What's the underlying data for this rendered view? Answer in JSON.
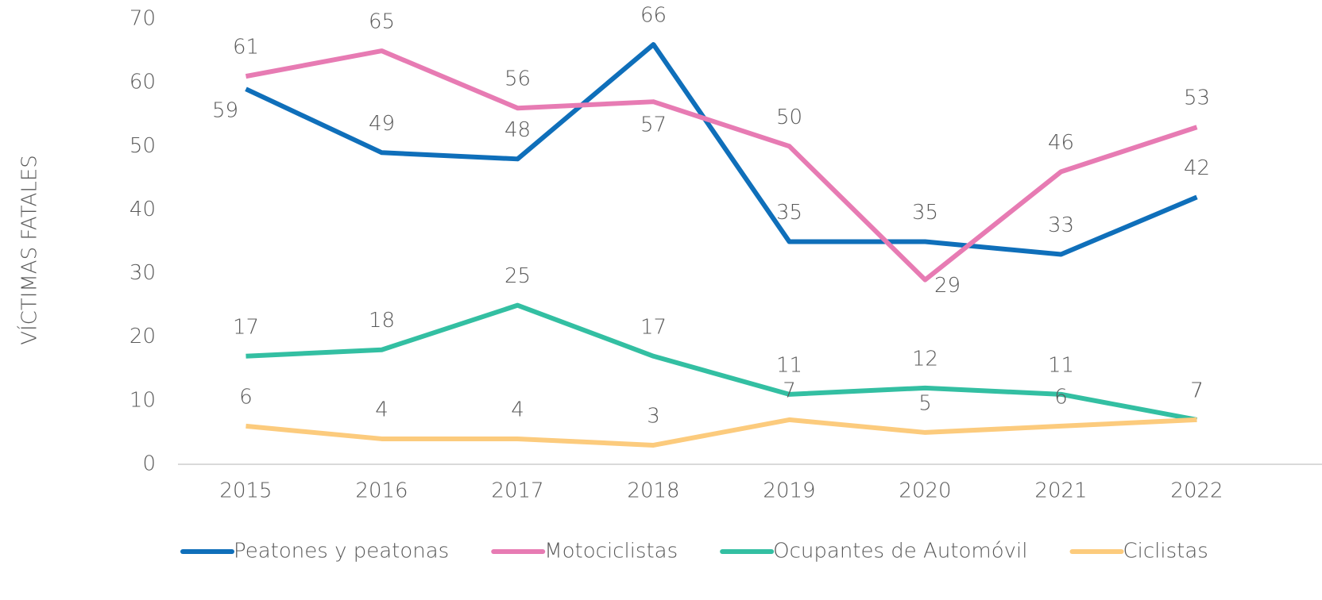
{
  "chart_data": {
    "type": "line",
    "y_label": "VÍCTIMAS FATALES",
    "categories": [
      "2015",
      "2016",
      "2017",
      "2018",
      "2019",
      "2020",
      "2021",
      "2022"
    ],
    "series": [
      {
        "name": "Peatones y peatonas",
        "color": "#0f6fba",
        "values": [
          59,
          49,
          48,
          66,
          35,
          35,
          33,
          42
        ]
      },
      {
        "name": "Motociclistas",
        "color": "#e77bb3",
        "values": [
          61,
          65,
          56,
          57,
          50,
          29,
          46,
          53
        ]
      },
      {
        "name": "Ocupantes de Automóvil",
        "color": "#33bfa2",
        "values": [
          17,
          18,
          25,
          17,
          11,
          12,
          11,
          7
        ]
      },
      {
        "name": "Ciclistas",
        "color": "#fccb7d",
        "values": [
          6,
          4,
          4,
          3,
          7,
          5,
          6,
          7
        ]
      }
    ],
    "ylim": [
      0,
      70
    ],
    "yticks": [
      0,
      10,
      20,
      30,
      40,
      50,
      60,
      70
    ],
    "grid": false,
    "legend": "bottom"
  }
}
